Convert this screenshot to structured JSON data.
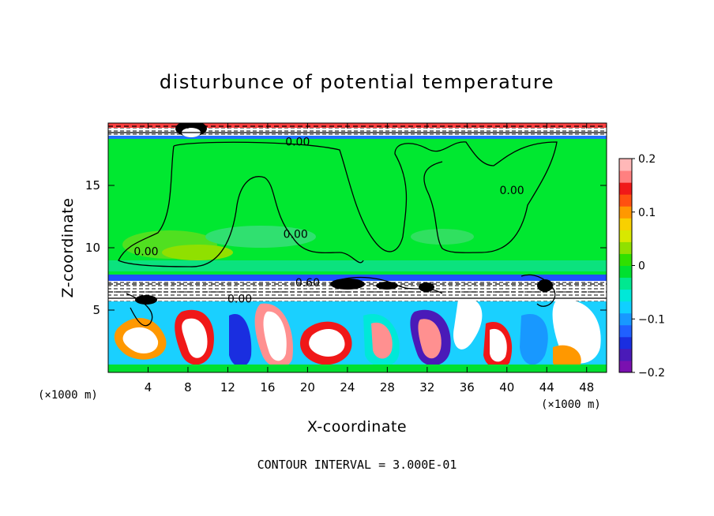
{
  "chart_data": {
    "type": "heatmap",
    "title": "disturbunce of potential temperature",
    "xlabel": "X-coordinate",
    "ylabel": "Z-coordinate",
    "x_unit": "(×1000 m)",
    "x_unit_right": "(×1000 m)",
    "footer": "CONTOUR INTERVAL = 3.000E-01",
    "xlim": [
      0,
      50
    ],
    "ylim": [
      0,
      20
    ],
    "x_ticks": [
      4,
      8,
      12,
      16,
      20,
      24,
      28,
      32,
      36,
      40,
      44,
      48
    ],
    "x_tick_labels": [
      "4",
      "8",
      "12",
      "16",
      "20",
      "24",
      "28",
      "32",
      "36",
      "40",
      "44",
      "48"
    ],
    "y_ticks": [
      5,
      10,
      15
    ],
    "y_tick_labels": [
      "5",
      "10",
      "15"
    ],
    "colorbar": {
      "range": [
        -0.2,
        0.2
      ],
      "ticks": [
        0.2,
        0.1,
        0,
        -0.1,
        -0.2
      ],
      "tick_labels": [
        "0.2",
        "0.1",
        "0",
        "−0.1",
        "−0.2"
      ],
      "colors": [
        "#7a10b0",
        "#4a1ab8",
        "#1a2ee0",
        "#2060ff",
        "#1898ff",
        "#10d0ff",
        "#00e8d8",
        "#00e890",
        "#00e030",
        "#30e000",
        "#90e000",
        "#d8e800",
        "#f8d000",
        "#ff9800",
        "#ff5010",
        "#f01818",
        "#ff8080",
        "#ffb8b8"
      ]
    },
    "contour_labels": [
      {
        "text": "0.00",
        "x": 19,
        "z": 18.2
      },
      {
        "text": "0.00",
        "x": 40.5,
        "z": 14.3
      },
      {
        "text": "0.00",
        "x": 18.8,
        "z": 10.8
      },
      {
        "text": "0.00",
        "x": 3.8,
        "z": 9.4
      },
      {
        "text": "0.60",
        "x": 20,
        "z": 6.9
      },
      {
        "text": "0.00",
        "x": 13.2,
        "z": 5.6
      }
    ],
    "contour_interval": 0.3
  }
}
